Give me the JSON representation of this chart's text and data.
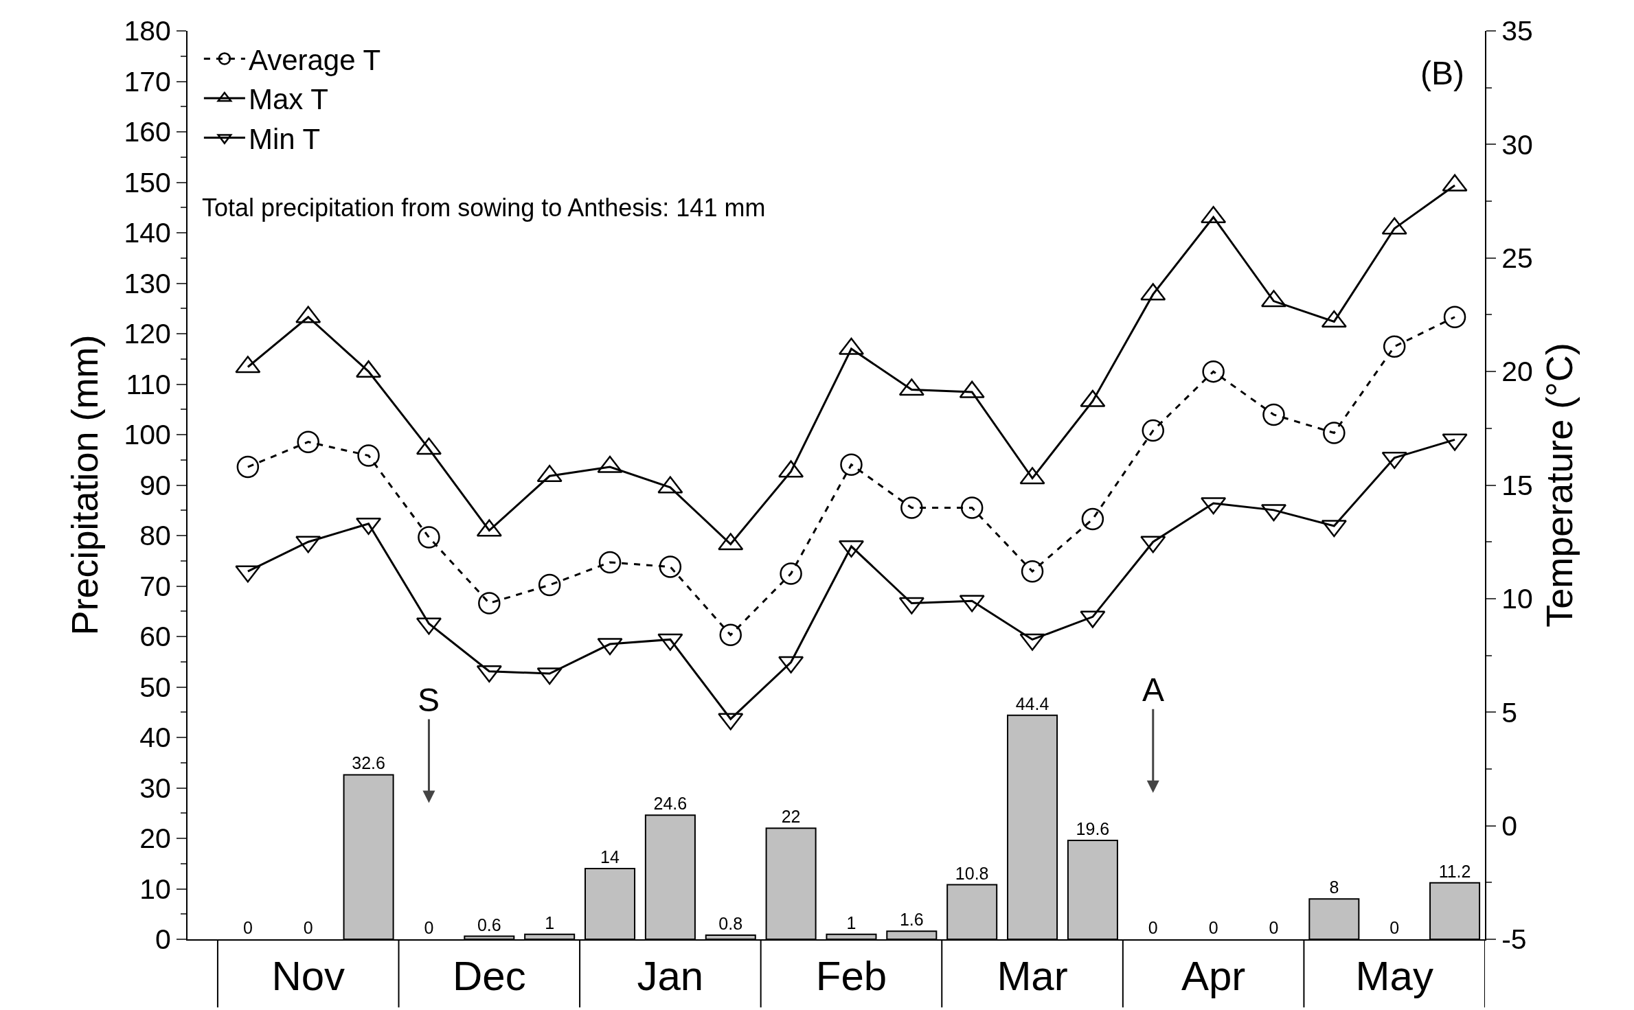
{
  "chart_data": {
    "type": "bar",
    "ylabel": "Precipitation (mm)",
    "y2label": "Temperature (°C)",
    "categories": [
      null,
      "Nov",
      null,
      null,
      "Dec",
      null,
      null,
      "Jan",
      null,
      null,
      "Feb",
      null,
      null,
      "Mar",
      null,
      null,
      "Apr",
      null,
      null,
      "May",
      null
    ],
    "series": [
      {
        "color": "#c0c0c0",
        "values": [
          0,
          0,
          32.6,
          0,
          0.6,
          1,
          14,
          24.6,
          0.8,
          22,
          1,
          1.6,
          10.8,
          44.4,
          19.6,
          0,
          0,
          0,
          8,
          0,
          11.2
        ],
        "value_labels": [
          "0",
          "0",
          "32.6",
          "0",
          "0.6",
          "1",
          "14",
          "24.6",
          "0.8",
          "22",
          "1",
          "1.6",
          "10.8",
          "44.4",
          "19.6",
          "0",
          "0",
          "0",
          "8",
          "0",
          "11.2"
        ]
      },
      {
        "name": "Average T",
        "type": "line",
        "axis": "y2",
        "color": "#000000",
        "marker": "circle",
        "line_style": "dashed",
        "values": [
          15.8,
          16.9,
          16.3,
          12.7,
          9.8,
          10.6,
          11.6,
          11.4,
          8.4,
          11.1,
          15.9,
          14.0,
          14.0,
          11.2,
          13.5,
          17.4,
          20.0,
          18.1,
          17.3,
          21.1,
          22.4
        ]
      },
      {
        "name": "Max T",
        "type": "line",
        "axis": "y2",
        "color": "#000000",
        "marker": "triangle",
        "line_style": "solid",
        "values": [
          20.2,
          22.4,
          20.0,
          16.6,
          13.0,
          15.4,
          15.8,
          14.9,
          12.4,
          15.6,
          21.0,
          19.2,
          19.1,
          15.3,
          18.7,
          23.4,
          26.8,
          23.1,
          22.2,
          26.3,
          28.2
        ]
      },
      {
        "name": "Min T",
        "type": "line",
        "axis": "y2",
        "color": "#000000",
        "marker": "triangle-down",
        "line_style": "solid",
        "values": [
          11.2,
          12.5,
          13.3,
          8.9,
          6.8,
          6.7,
          8.0,
          8.2,
          4.7,
          7.2,
          12.3,
          9.8,
          9.9,
          8.2,
          9.2,
          12.5,
          14.2,
          13.9,
          13.2,
          16.2,
          17.0
        ]
      }
    ],
    "ylim": [
      0,
      180
    ],
    "yticks": [
      0,
      10,
      20,
      30,
      40,
      50,
      60,
      70,
      80,
      90,
      100,
      110,
      120,
      130,
      140,
      150,
      160,
      170,
      180
    ],
    "y2lim": [
      -5,
      35
    ],
    "y2ticks": [
      -5,
      0,
      5,
      10,
      15,
      20,
      25,
      30,
      35
    ],
    "annotations": [
      "(B)",
      "Total precipitation from sowing to Anthesis: 141 mm",
      "S",
      "A"
    ],
    "legend": "top left"
  }
}
